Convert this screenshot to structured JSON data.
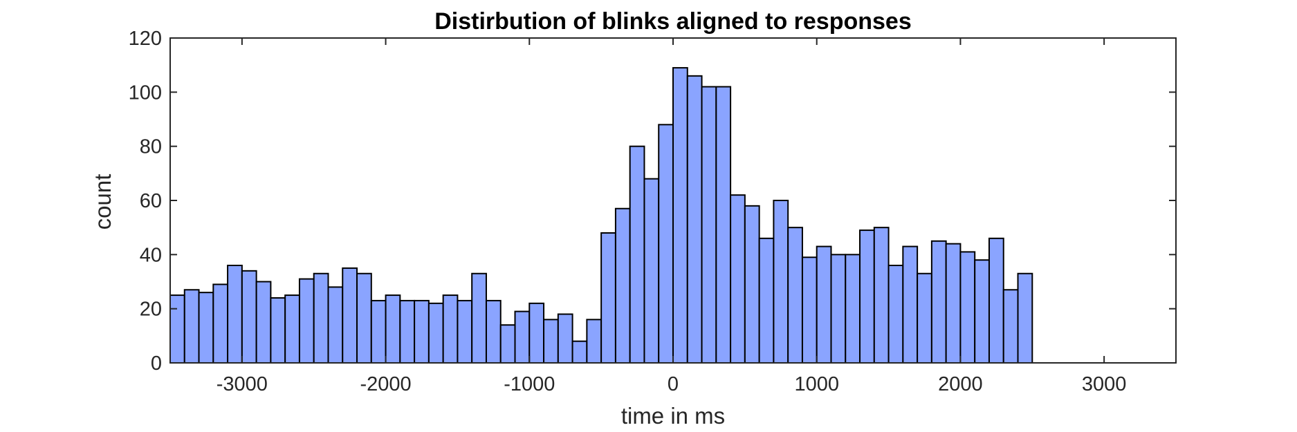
{
  "chart_data": {
    "type": "bar",
    "title": "Distirbution of blinks aligned to responses",
    "xlabel": "time in ms",
    "ylabel": "count",
    "xlim": [
      -3500,
      3500
    ],
    "ylim": [
      0,
      120
    ],
    "bin_width": 100,
    "bin_start": -3500,
    "values": [
      25,
      27,
      26,
      29,
      36,
      34,
      30,
      24,
      25,
      31,
      33,
      28,
      35,
      33,
      23,
      25,
      23,
      23,
      22,
      25,
      23,
      33,
      23,
      14,
      19,
      22,
      16,
      18,
      8,
      16,
      48,
      57,
      80,
      68,
      88,
      109,
      106,
      102,
      102,
      62,
      58,
      46,
      60,
      50,
      39,
      43,
      40,
      40,
      49,
      50,
      36,
      43,
      33,
      45,
      44,
      41,
      38,
      46,
      27,
      33
    ],
    "xticks": [
      -3000,
      -2000,
      -1000,
      0,
      1000,
      2000,
      3000
    ],
    "yticks": [
      0,
      20,
      40,
      60,
      80,
      100,
      120
    ],
    "bar_color": "#8aa4ff",
    "edge_color": "#000000",
    "grid": false,
    "legend": "none"
  }
}
